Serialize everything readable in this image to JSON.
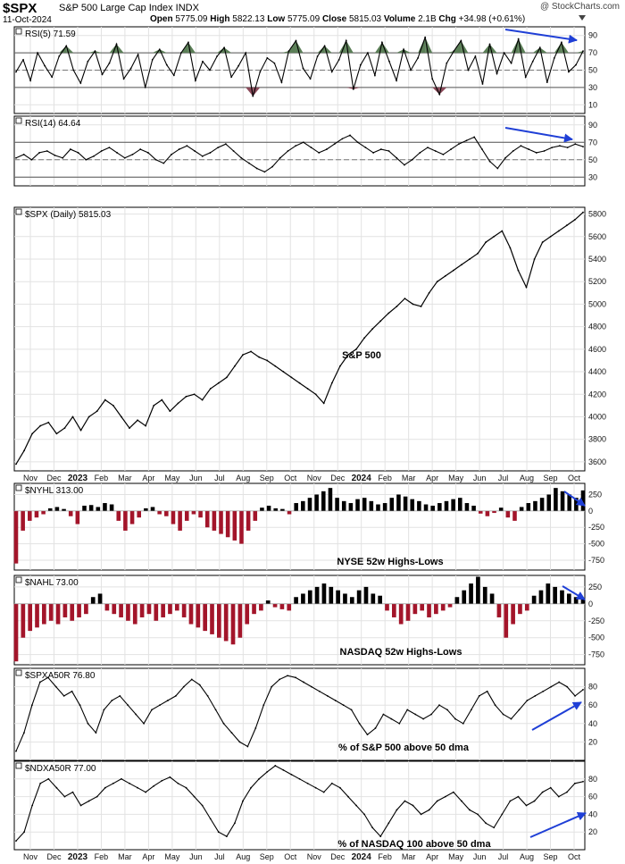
{
  "header": {
    "symbol": "$SPX",
    "name": "S&P 500 Large Cap Index INDX",
    "date": "11-Oct-2024",
    "open_label": "Open",
    "open": "5775.09",
    "high_label": "High",
    "high": "5822.13",
    "low_label": "Low",
    "low": "5775.09",
    "close_label": "Close",
    "close": "5815.03",
    "volume_label": "Volume",
    "volume": "2.1B",
    "chg_label": "Chg",
    "chg": "+34.98 (+0.61%)",
    "watermark": "@ StockCharts.com"
  },
  "axis": {
    "months_top": [
      "Nov",
      "Dec",
      "2023",
      "Feb",
      "Mar",
      "Apr",
      "May",
      "Jun",
      "Jul",
      "Aug",
      "Sep",
      "Oct",
      "Nov",
      "Dec",
      "2024",
      "Feb",
      "Mar",
      "Apr",
      "May",
      "Jun",
      "Jul",
      "Aug",
      "Sep",
      "Oct"
    ],
    "months_bottom": [
      "Nov",
      "Dec",
      "2023",
      "Feb",
      "Mar",
      "Apr",
      "May",
      "Jun",
      "Jul",
      "Aug",
      "Sep",
      "Oct",
      "Nov",
      "Dec",
      "2024",
      "Feb",
      "Mar",
      "Apr",
      "May",
      "Jun",
      "Jul",
      "Aug",
      "Sep",
      "Oct"
    ]
  },
  "chart_data": [
    {
      "type": "area",
      "title": "RSI(5) 71.59",
      "yticks": [
        10,
        30,
        50,
        70,
        90
      ],
      "ylim": [
        0,
        100
      ],
      "reference_lines": [
        30,
        70
      ],
      "series": [
        {
          "values": [
            48,
            62,
            38,
            70,
            55,
            42,
            66,
            78,
            50,
            35,
            60,
            72,
            45,
            58,
            80,
            40,
            52,
            68,
            30,
            62,
            74,
            56,
            44,
            70,
            82,
            38,
            60,
            50,
            66,
            76,
            42,
            55,
            70,
            20,
            48,
            64,
            58,
            36,
            72,
            84,
            52,
            40,
            66,
            78,
            48,
            62,
            84,
            28,
            56,
            70,
            44,
            82,
            60,
            38,
            74,
            50,
            64,
            88,
            40,
            22,
            58,
            72,
            84,
            50,
            66,
            34,
            80,
            46,
            70,
            58,
            86,
            42,
            60,
            76,
            36,
            64,
            82,
            48,
            56,
            72
          ]
        }
      ],
      "annotations": []
    },
    {
      "type": "line",
      "title": "RSI(14) 64.64",
      "yticks": [
        30,
        50,
        70,
        90
      ],
      "ylim": [
        20,
        100
      ],
      "reference_lines": [
        30,
        70
      ],
      "series": [
        {
          "values": [
            52,
            56,
            50,
            58,
            60,
            55,
            52,
            62,
            58,
            50,
            54,
            60,
            64,
            58,
            52,
            56,
            62,
            58,
            50,
            46,
            56,
            62,
            66,
            60,
            54,
            58,
            64,
            68,
            60,
            52,
            46,
            40,
            36,
            42,
            52,
            60,
            66,
            70,
            64,
            58,
            62,
            68,
            74,
            78,
            70,
            64,
            58,
            62,
            60,
            52,
            44,
            50,
            58,
            64,
            60,
            56,
            62,
            68,
            72,
            76,
            62,
            48,
            40,
            52,
            60,
            66,
            62,
            58,
            60,
            64,
            66,
            64,
            68,
            65
          ]
        }
      ],
      "annotations": []
    },
    {
      "type": "line",
      "title": "$SPX (Daily) 5815.03",
      "yticks": [
        3600,
        3800,
        4000,
        4200,
        4400,
        4600,
        4800,
        5000,
        5200,
        5400,
        5600,
        5800
      ],
      "ylim": [
        3520,
        5860
      ],
      "series": [
        {
          "values": [
            3580,
            3700,
            3850,
            3920,
            3950,
            3850,
            3900,
            4000,
            3880,
            4000,
            4050,
            4150,
            4100,
            4000,
            3900,
            3970,
            3920,
            4100,
            4150,
            4050,
            4120,
            4180,
            4200,
            4150,
            4250,
            4300,
            4350,
            4450,
            4550,
            4580,
            4530,
            4500,
            4450,
            4400,
            4350,
            4300,
            4250,
            4200,
            4120,
            4300,
            4450,
            4550,
            4600,
            4700,
            4780,
            4850,
            4920,
            4980,
            5050,
            5000,
            4980,
            5100,
            5200,
            5250,
            5300,
            5350,
            5400,
            5450,
            5550,
            5600,
            5650,
            5500,
            5300,
            5150,
            5400,
            5550,
            5600,
            5650,
            5700,
            5750,
            5815
          ]
        }
      ],
      "annotations": [
        "S&P 500"
      ]
    },
    {
      "type": "bar",
      "title": "$NYHL 313.00",
      "yticks": [
        -750,
        -500,
        -250,
        0,
        250
      ],
      "ylim": [
        -900,
        420
      ],
      "series": [
        {
          "values": [
            -800,
            -300,
            -150,
            -100,
            -50,
            40,
            60,
            30,
            -80,
            -200,
            80,
            90,
            60,
            120,
            100,
            -150,
            -300,
            -200,
            -100,
            40,
            60,
            -50,
            -80,
            -200,
            -300,
            -150,
            -50,
            -100,
            -250,
            -300,
            -350,
            -400,
            -450,
            -500,
            -300,
            -150,
            50,
            80,
            40,
            30,
            -50,
            120,
            150,
            200,
            250,
            300,
            350,
            200,
            150,
            120,
            180,
            200,
            150,
            100,
            120,
            200,
            250,
            220,
            180,
            150,
            100,
            80,
            120,
            150,
            180,
            200,
            120,
            80,
            -40,
            -80,
            -30,
            50,
            -100,
            -150,
            60,
            120,
            150,
            200,
            250,
            350,
            300,
            250,
            200,
            313
          ]
        }
      ],
      "annotations": [
        "NYSE  52w Highs-Lows"
      ]
    },
    {
      "type": "bar",
      "title": "$NAHL 73.00",
      "yticks": [
        -750,
        -500,
        -250,
        0,
        250
      ],
      "ylim": [
        -900,
        420
      ],
      "series": [
        {
          "values": [
            -850,
            -500,
            -400,
            -350,
            -300,
            -250,
            -300,
            -200,
            -250,
            -200,
            -150,
            100,
            150,
            -100,
            -150,
            -200,
            -250,
            -300,
            -200,
            -150,
            -250,
            -200,
            -150,
            -100,
            -200,
            -300,
            -350,
            -400,
            -450,
            -500,
            -550,
            -600,
            -500,
            -300,
            -150,
            -100,
            50,
            -50,
            -80,
            -100,
            100,
            150,
            200,
            250,
            300,
            250,
            200,
            150,
            100,
            200,
            250,
            150,
            120,
            -100,
            -200,
            -300,
            -250,
            -150,
            -100,
            -200,
            -150,
            -100,
            -50,
            100,
            200,
            300,
            400,
            250,
            150,
            -200,
            -500,
            -300,
            -150,
            -100,
            120,
            200,
            300,
            250,
            200,
            150,
            100,
            73
          ]
        }
      ],
      "annotations": [
        "NASDAQ 52w Highs-Lows"
      ]
    },
    {
      "type": "line",
      "title": "$SPXA50R 76.80",
      "yticks": [
        20,
        40,
        60,
        80
      ],
      "ylim": [
        0,
        100
      ],
      "series": [
        {
          "values": [
            10,
            30,
            60,
            85,
            90,
            80,
            70,
            75,
            60,
            40,
            30,
            55,
            65,
            70,
            60,
            50,
            40,
            55,
            60,
            65,
            70,
            80,
            88,
            82,
            70,
            55,
            40,
            30,
            20,
            15,
            35,
            60,
            80,
            88,
            92,
            90,
            85,
            80,
            75,
            70,
            65,
            60,
            55,
            40,
            28,
            35,
            50,
            45,
            40,
            55,
            50,
            45,
            50,
            60,
            55,
            45,
            40,
            55,
            70,
            75,
            60,
            50,
            45,
            55,
            65,
            70,
            75,
            80,
            85,
            80,
            70,
            76.8
          ]
        }
      ],
      "annotations": [
        "% of S&P 500 above 50 dma"
      ]
    },
    {
      "type": "line",
      "title": "$NDXA50R 77.00",
      "yticks": [
        20,
        40,
        60,
        80
      ],
      "ylim": [
        0,
        100
      ],
      "series": [
        {
          "values": [
            10,
            20,
            50,
            75,
            80,
            70,
            60,
            65,
            50,
            55,
            60,
            70,
            75,
            80,
            75,
            70,
            65,
            72,
            78,
            82,
            75,
            70,
            60,
            50,
            35,
            20,
            15,
            30,
            55,
            70,
            80,
            88,
            95,
            90,
            85,
            80,
            75,
            70,
            65,
            75,
            70,
            60,
            50,
            40,
            25,
            15,
            30,
            45,
            55,
            50,
            40,
            45,
            55,
            60,
            65,
            55,
            45,
            40,
            30,
            25,
            40,
            55,
            60,
            50,
            55,
            65,
            70,
            60,
            65,
            75,
            77
          ]
        }
      ],
      "annotations": [
        "% of NASDAQ 100 above 50 dma"
      ]
    }
  ]
}
